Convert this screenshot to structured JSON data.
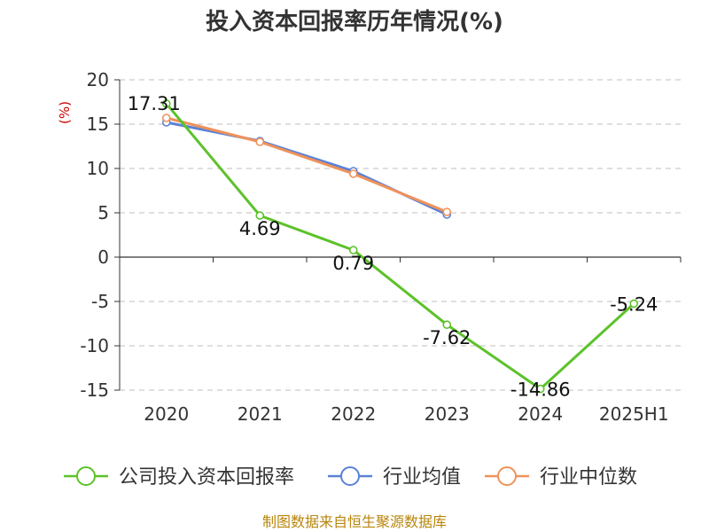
{
  "chart_data": {
    "type": "line",
    "title": "投入资本回报率历年情况(%)",
    "ylabel": "(%)",
    "xlabel": "",
    "categories": [
      "2020",
      "2021",
      "2022",
      "2023",
      "2024",
      "2025H1"
    ],
    "ylim": [
      -15,
      20
    ],
    "yticks": [
      20,
      15,
      10,
      5,
      0,
      -5,
      -10,
      -15
    ],
    "grid": true,
    "legend_position": "bottom",
    "series": [
      {
        "name": "公司投入资本回报率",
        "color": "#5cc22a",
        "values": [
          17.31,
          4.69,
          0.79,
          -7.62,
          -14.86,
          -5.24
        ],
        "labels": [
          "17.31",
          "4.69",
          "0.79",
          "-7.62",
          "-14.86",
          "-5.24"
        ]
      },
      {
        "name": "行业均值",
        "color": "#5b82d6",
        "values": [
          15.2,
          13.1,
          9.7,
          4.8,
          null,
          null
        ]
      },
      {
        "name": "行业中位数",
        "color": "#f0925a",
        "values": [
          15.7,
          13.0,
          9.4,
          5.1,
          null,
          null
        ]
      }
    ]
  },
  "footer": {
    "source": "制图数据来自恒生聚源数据库"
  }
}
